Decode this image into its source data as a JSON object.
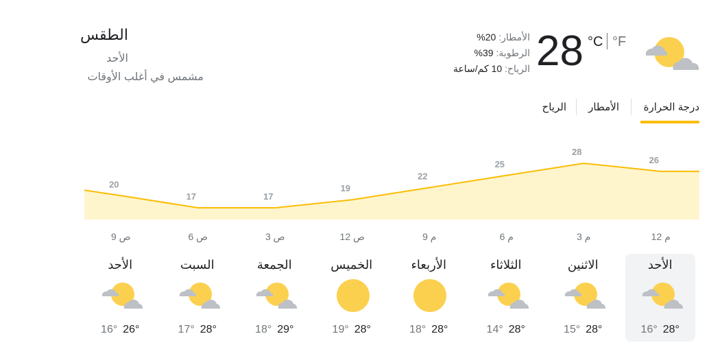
{
  "header": {
    "title": "الطقس",
    "day": "الأحد",
    "condition": "مشمس في أغلب الأوقات",
    "current_temp": "28",
    "unit_c": "°C",
    "unit_f": "°F",
    "icon": "partly-cloudy-icon"
  },
  "stats": {
    "precip_label": "الأمطار: ",
    "precip_value": "20%",
    "humidity_label": "الرطوبة: ",
    "humidity_value": "39%",
    "wind_label": "الرياح: ",
    "wind_value": "10 كم/ساعة"
  },
  "tabs": [
    {
      "label": "درجة الحرارة",
      "selected": true
    },
    {
      "label": "الأمطار",
      "selected": false
    },
    {
      "label": "الرياح",
      "selected": false
    }
  ],
  "colors": {
    "accent": "#fbbc04",
    "chart_fill": "#fff5cc",
    "label_grey": "#9aa0a6"
  },
  "chart_data": {
    "type": "area",
    "x": [
      "12 م",
      "3 م",
      "6 م",
      "9 م",
      "12 ص",
      "3 ص",
      "6 ص",
      "9 ص"
    ],
    "values": [
      26,
      28,
      25,
      22,
      19,
      17,
      17,
      20
    ],
    "title": "",
    "xlabel": "",
    "ylabel": "",
    "direction": "rtl"
  },
  "forecast": [
    {
      "day": "الأحد",
      "high": "28°",
      "low": "16°",
      "icon": "partly-cloudy-icon",
      "selected": true
    },
    {
      "day": "الاثنين",
      "high": "28°",
      "low": "15°",
      "icon": "partly-cloudy-icon",
      "selected": false
    },
    {
      "day": "الثلاثاء",
      "high": "28°",
      "low": "14°",
      "icon": "partly-cloudy-icon",
      "selected": false
    },
    {
      "day": "الأربعاء",
      "high": "28°",
      "low": "18°",
      "icon": "sun-icon",
      "selected": false
    },
    {
      "day": "الخميس",
      "high": "28°",
      "low": "19°",
      "icon": "sun-icon",
      "selected": false
    },
    {
      "day": "الجمعة",
      "high": "29°",
      "low": "18°",
      "icon": "partly-cloudy-icon",
      "selected": false
    },
    {
      "day": "السبت",
      "high": "28°",
      "low": "17°",
      "icon": "partly-cloudy-icon",
      "selected": false
    },
    {
      "day": "الأحد",
      "high": "26°",
      "low": "16°",
      "icon": "partly-cloudy-icon",
      "selected": false
    }
  ]
}
